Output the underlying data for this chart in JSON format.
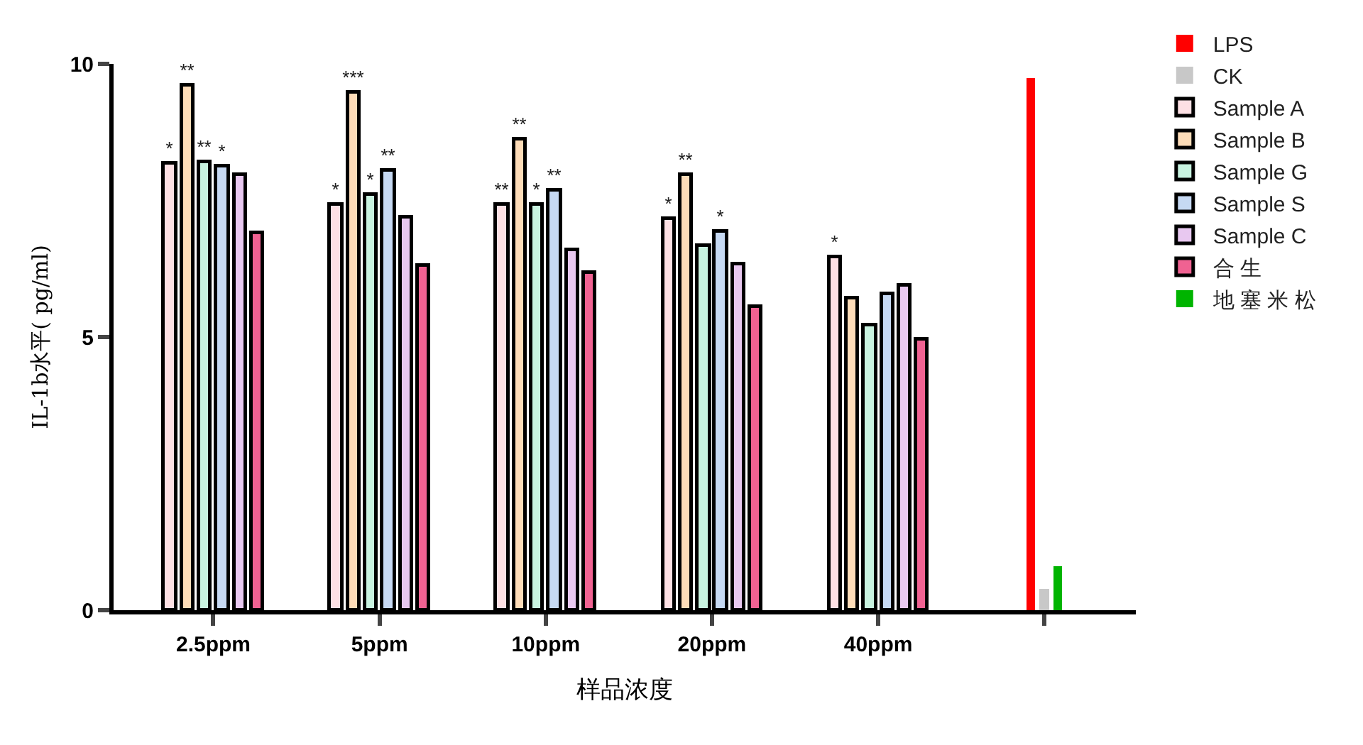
{
  "chart_data": {
    "type": "bar",
    "xlabel": "样品浓度",
    "ylabel": "IL-1b水平( pg/ml)",
    "categories": [
      "2.5ppm",
      "5ppm",
      "10ppm",
      "20ppm",
      "40ppm",
      null
    ],
    "ylim": [
      0,
      10
    ],
    "yticks": [
      0,
      5,
      10
    ],
    "grid": false,
    "legend": "top right",
    "series": [
      {
        "name": "LPS",
        "color": "#ff0000",
        "values": [
          null,
          null,
          null,
          null,
          null,
          9.75
        ]
      },
      {
        "name": "CK",
        "color": "#c8c8c8",
        "values": [
          null,
          null,
          null,
          null,
          null,
          0.4
        ]
      },
      {
        "name": "Sample A",
        "color": "#fde0e4",
        "values": [
          8.17,
          7.43,
          7.43,
          7.16,
          6.48,
          null
        ],
        "value_labels": [
          "*",
          "*",
          "**",
          "*",
          "*",
          null
        ]
      },
      {
        "name": "Sample B",
        "color": "#fddcb8",
        "values": [
          9.62,
          9.48,
          8.63,
          7.98,
          5.71,
          null
        ],
        "value_labels": [
          "**",
          "***",
          "**",
          "**",
          null,
          null
        ]
      },
      {
        "name": "Sample G",
        "color": "#c8f3e0",
        "values": [
          8.2,
          7.6,
          7.43,
          6.67,
          5.22,
          null
        ],
        "value_labels": [
          "**",
          "*",
          "*",
          null,
          null,
          null
        ]
      },
      {
        "name": "Sample S",
        "color": "#c6d9f3",
        "values": [
          8.14,
          8.06,
          7.7,
          6.94,
          5.79,
          null
        ],
        "value_labels": [
          "*",
          "**",
          "**",
          "*",
          null,
          null
        ]
      },
      {
        "name": "Sample C",
        "color": "#e8c8f0",
        "values": [
          7.98,
          7.19,
          6.61,
          6.34,
          5.96,
          null
        ]
      },
      {
        "name": "合 生",
        "color": "#f06292",
        "values": [
          6.9,
          6.3,
          6.17,
          5.57,
          4.97,
          null
        ]
      },
      {
        "name": "地 塞 米 松",
        "color": "#00b400",
        "values": [
          null,
          null,
          null,
          null,
          null,
          0.8
        ]
      }
    ]
  }
}
